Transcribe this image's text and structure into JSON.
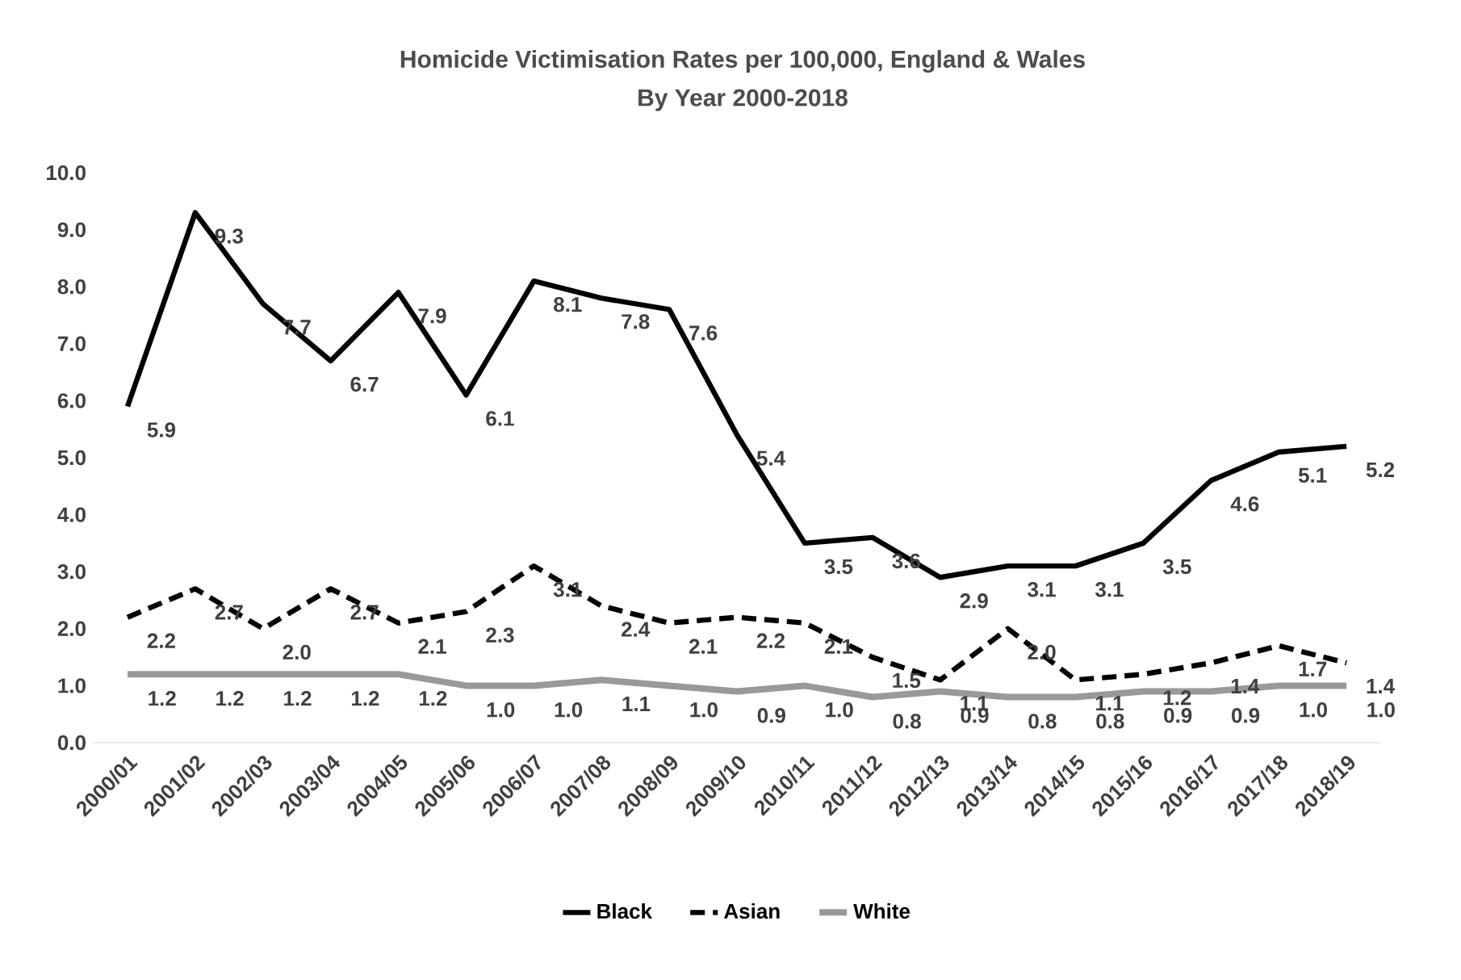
{
  "chart_data": {
    "type": "line",
    "title": "Homicide Victimisation Rates per 100,000, England & Wales",
    "subtitle": "By Year 2000-2018",
    "categories": [
      "2000/01",
      "2001/02",
      "2002/03",
      "2003/04",
      "2004/05",
      "2005/06",
      "2006/07",
      "2007/08",
      "2008/09",
      "2009/10",
      "2010/11",
      "2011/12",
      "2012/13",
      "2013/14",
      "2014/15",
      "2015/16",
      "2016/17",
      "2017/18",
      "2018/19"
    ],
    "series": [
      {
        "name": "Black",
        "color": "#000000",
        "line_style": "solid",
        "values": [
          5.9,
          9.3,
          7.7,
          6.7,
          7.9,
          6.1,
          8.1,
          7.8,
          7.6,
          5.4,
          3.5,
          3.6,
          2.9,
          3.1,
          3.1,
          3.5,
          4.6,
          5.1,
          5.2
        ],
        "value_labels": [
          "5.9",
          "9.3",
          "7.7",
          "6.7",
          "7.9",
          "6.1",
          "8.1",
          "7.8",
          "7.6",
          "5.4",
          "3.5",
          "3.6",
          "2.9",
          "3.1",
          "3.1",
          "3.5",
          "4.6",
          "5.1",
          "5.2"
        ]
      },
      {
        "name": "Asian",
        "color": "#000000",
        "line_style": "dashed",
        "values": [
          2.2,
          2.7,
          2.0,
          2.7,
          2.1,
          2.3,
          3.1,
          2.4,
          2.1,
          2.2,
          2.1,
          1.5,
          1.1,
          2.0,
          1.1,
          1.2,
          1.4,
          1.7,
          1.4
        ],
        "value_labels": [
          "2.2",
          "2.7",
          "2.0",
          "2.7",
          "2.1",
          "2.3",
          "3.1",
          "2.4",
          "2.1",
          "2.2",
          "2.1",
          "1.5",
          "1.1",
          "2.0",
          "1.1",
          "1.2",
          "1.4",
          "1.7",
          "1.4"
        ]
      },
      {
        "name": "White",
        "color": "#999999",
        "line_style": "solid",
        "values": [
          1.2,
          1.2,
          1.2,
          1.2,
          1.2,
          1.0,
          1.0,
          1.1,
          1.0,
          0.9,
          1.0,
          0.8,
          0.9,
          0.8,
          0.8,
          0.9,
          0.9,
          1.0,
          1.0
        ],
        "value_labels": [
          "1.2",
          "1.2",
          "1.2",
          "1.2",
          "1.2",
          "1.0",
          "1.0",
          "1.1",
          "1.0",
          "0.9",
          "1.0",
          "0.8",
          "0.9",
          "0.8",
          "0.8",
          "0.9",
          "0.9",
          "1.0",
          "1.0"
        ]
      }
    ],
    "ylim": [
      0,
      10
    ],
    "yticks": [
      {
        "value": 0,
        "label": "0.0"
      },
      {
        "value": 1,
        "label": "1.0"
      },
      {
        "value": 2,
        "label": "2.0"
      },
      {
        "value": 3,
        "label": "3.0"
      },
      {
        "value": 4,
        "label": "4.0"
      },
      {
        "value": 5,
        "label": "5.0"
      },
      {
        "value": 6,
        "label": "6.0"
      },
      {
        "value": 7,
        "label": "7.0"
      },
      {
        "value": 8,
        "label": "8.0"
      },
      {
        "value": 9,
        "label": "9.0"
      },
      {
        "value": 10,
        "label": "10.0"
      }
    ],
    "grid": false,
    "legend": "bottom",
    "marker": "none"
  }
}
